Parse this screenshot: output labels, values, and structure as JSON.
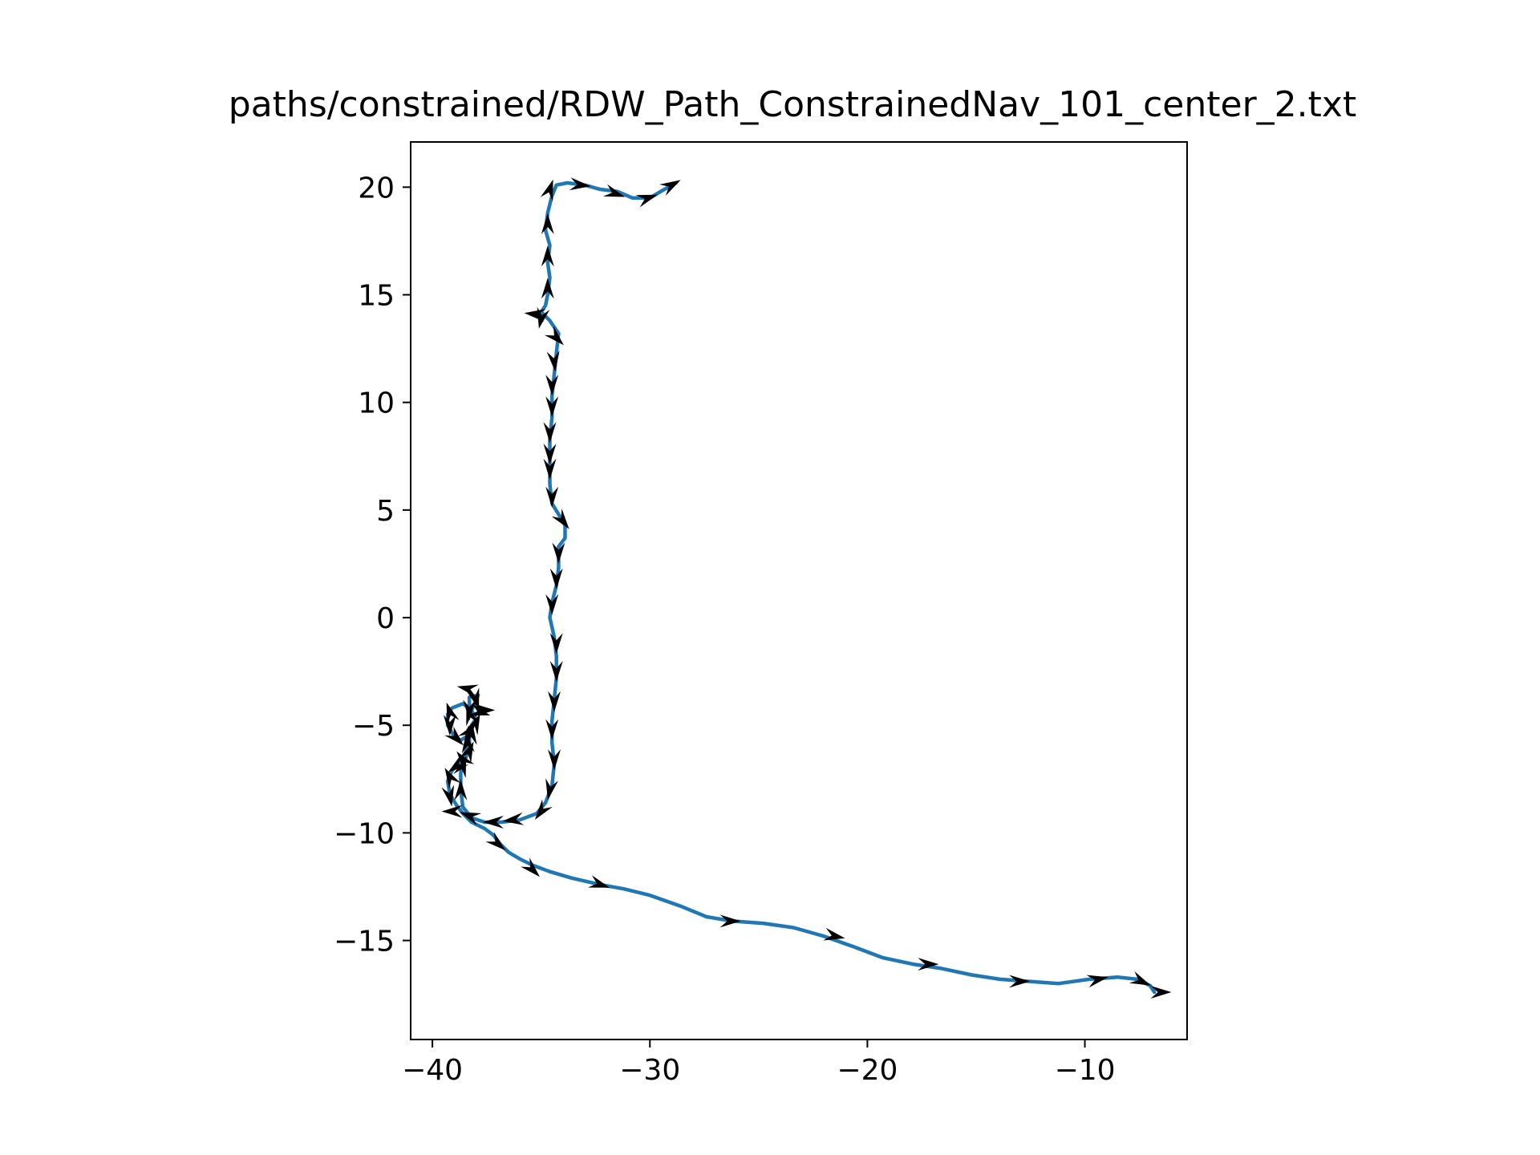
{
  "chart_data": {
    "type": "line",
    "title": "paths/constrained/RDW_Path_ConstrainedNav_101_center_2.txt",
    "xlabel": "",
    "ylabel": "",
    "xlim": [
      -41,
      -5.3
    ],
    "ylim": [
      -19.6,
      22.1
    ],
    "xticks": [
      -40,
      -30,
      -20,
      -10
    ],
    "xtick_labels": [
      "−40",
      "−30",
      "−20",
      "−10"
    ],
    "yticks": [
      -15,
      -10,
      -5,
      0,
      5,
      10,
      15,
      20
    ],
    "ytick_labels": [
      "−15",
      "−10",
      "−5",
      "0",
      "5",
      "10",
      "15",
      "20"
    ],
    "grid": false,
    "line_color": "#1f77b4",
    "arrow_color": "#000000",
    "series": [
      {
        "values": [
          [
            -28.8,
            20.2
          ],
          [
            -29.5,
            19.8
          ],
          [
            -30.0,
            19.5
          ],
          [
            -30.8,
            19.5
          ],
          [
            -31.5,
            19.8
          ],
          [
            -32.3,
            19.9
          ],
          [
            -33.0,
            20.1
          ],
          [
            -33.8,
            20.2
          ],
          [
            -34.3,
            20.1
          ],
          [
            -34.5,
            19.6
          ],
          [
            -34.7,
            18.8
          ],
          [
            -34.8,
            18.0
          ],
          [
            -34.6,
            17.3
          ],
          [
            -34.7,
            16.5
          ],
          [
            -34.6,
            15.8
          ],
          [
            -34.7,
            15.0
          ],
          [
            -34.8,
            14.5
          ],
          [
            -35.0,
            14.2
          ],
          [
            -34.6,
            13.8
          ],
          [
            -34.2,
            13.2
          ],
          [
            -34.3,
            12.3
          ],
          [
            -34.4,
            11.3
          ],
          [
            -34.5,
            10.3
          ],
          [
            -34.5,
            9.3
          ],
          [
            -34.6,
            8.3
          ],
          [
            -34.6,
            7.3
          ],
          [
            -34.6,
            6.2
          ],
          [
            -34.5,
            5.3
          ],
          [
            -34.2,
            4.8
          ],
          [
            -33.9,
            4.3
          ],
          [
            -33.9,
            3.7
          ],
          [
            -34.2,
            3.3
          ],
          [
            -34.2,
            2.3
          ],
          [
            -34.3,
            1.5
          ],
          [
            -34.5,
            0.7
          ],
          [
            -34.6,
            0.0
          ],
          [
            -34.4,
            -0.9
          ],
          [
            -34.3,
            -1.8
          ],
          [
            -34.3,
            -2.8
          ],
          [
            -34.4,
            -3.8
          ],
          [
            -34.5,
            -4.8
          ],
          [
            -34.5,
            -5.8
          ],
          [
            -34.4,
            -6.8
          ],
          [
            -34.5,
            -7.8
          ],
          [
            -34.8,
            -8.6
          ],
          [
            -35.2,
            -9.1
          ],
          [
            -36.0,
            -9.4
          ],
          [
            -36.8,
            -9.5
          ],
          [
            -37.6,
            -9.5
          ],
          [
            -38.2,
            -9.3
          ],
          [
            -38.6,
            -8.8
          ],
          [
            -38.7,
            -8.0
          ],
          [
            -38.7,
            -7.2
          ],
          [
            -38.5,
            -6.6
          ],
          [
            -38.3,
            -6.1
          ],
          [
            -38.3,
            -5.5
          ],
          [
            -38.2,
            -5.0
          ],
          [
            -38.0,
            -4.7
          ],
          [
            -38.2,
            -4.3
          ],
          [
            -38.0,
            -3.9
          ],
          [
            -37.9,
            -3.6
          ],
          [
            -38.3,
            -3.7
          ],
          [
            -38.3,
            -4.2
          ],
          [
            -38.6,
            -4.0
          ],
          [
            -39.1,
            -4.2
          ],
          [
            -39.3,
            -4.5
          ],
          [
            -39.3,
            -5.0
          ],
          [
            -39.0,
            -5.5
          ],
          [
            -38.7,
            -5.7
          ],
          [
            -38.4,
            -5.5
          ],
          [
            -38.3,
            -5.1
          ],
          [
            -38.3,
            -5.8
          ],
          [
            -38.5,
            -6.3
          ],
          [
            -38.8,
            -6.8
          ],
          [
            -39.1,
            -7.1
          ],
          [
            -39.3,
            -7.6
          ],
          [
            -39.2,
            -8.2
          ],
          [
            -38.9,
            -8.7
          ],
          [
            -38.6,
            -9.1
          ],
          [
            -38.2,
            -9.5
          ],
          [
            -37.6,
            -9.8
          ],
          [
            -37.2,
            -10.1
          ],
          [
            -36.9,
            -10.5
          ],
          [
            -36.5,
            -10.9
          ],
          [
            -36.0,
            -11.2
          ],
          [
            -35.4,
            -11.5
          ],
          [
            -34.6,
            -11.8
          ],
          [
            -33.6,
            -12.1
          ],
          [
            -32.3,
            -12.4
          ],
          [
            -31.2,
            -12.6
          ],
          [
            -30.0,
            -12.9
          ],
          [
            -28.6,
            -13.4
          ],
          [
            -27.4,
            -13.9
          ],
          [
            -26.2,
            -14.1
          ],
          [
            -24.8,
            -14.2
          ],
          [
            -23.4,
            -14.4
          ],
          [
            -22.0,
            -14.8
          ],
          [
            -20.6,
            -15.3
          ],
          [
            -19.3,
            -15.8
          ],
          [
            -17.9,
            -16.1
          ],
          [
            -16.6,
            -16.3
          ],
          [
            -15.2,
            -16.6
          ],
          [
            -13.9,
            -16.8
          ],
          [
            -12.6,
            -16.9
          ],
          [
            -11.2,
            -17.0
          ],
          [
            -9.8,
            -16.8
          ],
          [
            -8.5,
            -16.7
          ],
          [
            -7.6,
            -16.8
          ],
          [
            -7.0,
            -17.1
          ],
          [
            -6.8,
            -17.4
          ]
        ]
      }
    ],
    "arrows": [
      [
        -29.0,
        20.1,
        0.9,
        0.5
      ],
      [
        -30.1,
        19.5,
        0.9,
        0.3
      ],
      [
        -31.6,
        19.7,
        0.9,
        -0.3
      ],
      [
        -33.2,
        20.1,
        0.9,
        -0.1
      ],
      [
        -34.6,
        19.9,
        0.3,
        0.9
      ],
      [
        -34.7,
        18.3,
        0.0,
        1.0
      ],
      [
        -34.7,
        16.8,
        0.0,
        1.0
      ],
      [
        -34.7,
        15.3,
        0.0,
        1.0
      ],
      [
        -35.3,
        14.1,
        -0.9,
        0.1
      ],
      [
        -35.0,
        13.9,
        -0.2,
        -0.9
      ],
      [
        -34.3,
        13.0,
        0.7,
        -0.7
      ],
      [
        -34.4,
        11.9,
        0.1,
        -1.0
      ],
      [
        -34.5,
        10.8,
        0.0,
        -1.0
      ],
      [
        -34.5,
        9.8,
        0.0,
        -1.0
      ],
      [
        -34.6,
        8.6,
        0.0,
        -1.0
      ],
      [
        -34.6,
        7.6,
        0.0,
        -1.0
      ],
      [
        -34.6,
        6.9,
        0.0,
        -1.0
      ],
      [
        -34.5,
        5.6,
        0.0,
        -1.0
      ],
      [
        -34.0,
        4.5,
        0.6,
        -0.8
      ],
      [
        -34.2,
        3.0,
        0.0,
        -1.0
      ],
      [
        -34.3,
        1.8,
        0.0,
        -1.0
      ],
      [
        -34.5,
        0.6,
        0.0,
        -1.0
      ],
      [
        -34.3,
        -1.2,
        0.0,
        -1.0
      ],
      [
        -34.3,
        -2.5,
        0.0,
        -1.0
      ],
      [
        -34.4,
        -3.9,
        0.0,
        -1.0
      ],
      [
        -34.5,
        -5.2,
        0.0,
        -1.0
      ],
      [
        -34.4,
        -6.6,
        0.0,
        -1.0
      ],
      [
        -34.6,
        -8.0,
        -0.2,
        -1.0
      ],
      [
        -35.0,
        -9.0,
        -0.6,
        -0.8
      ],
      [
        -36.3,
        -9.4,
        -0.9,
        -0.1
      ],
      [
        -37.2,
        -9.5,
        -0.9,
        0.0
      ],
      [
        -38.3,
        -9.2,
        -0.8,
        0.3
      ],
      [
        -39.1,
        -9.0,
        -1.0,
        0.0
      ],
      [
        -38.7,
        -8.0,
        0.0,
        1.0
      ],
      [
        -38.6,
        -6.9,
        0.3,
        0.9
      ],
      [
        -38.3,
        -6.2,
        0.4,
        0.9
      ],
      [
        -38.2,
        -5.4,
        0.1,
        1.0
      ],
      [
        -38.0,
        -4.9,
        0.4,
        0.9
      ],
      [
        -38.3,
        -4.5,
        -0.3,
        1.0
      ],
      [
        -37.8,
        -4.4,
        1.0,
        -0.3
      ],
      [
        -38.4,
        -3.3,
        -0.9,
        0.2
      ],
      [
        -38.0,
        -3.8,
        0.3,
        -1.0
      ],
      [
        -37.6,
        -4.3,
        1.0,
        0.0
      ],
      [
        -38.3,
        -4.3,
        0.0,
        -1.0
      ],
      [
        -39.2,
        -4.4,
        -0.3,
        0.9
      ],
      [
        -39.2,
        -5.0,
        0.0,
        -1.0
      ],
      [
        -38.9,
        -5.6,
        0.7,
        -0.7
      ],
      [
        -38.3,
        -5.3,
        0.6,
        0.8
      ],
      [
        -38.4,
        -5.8,
        -0.1,
        1.0
      ],
      [
        -38.6,
        -6.6,
        -0.6,
        0.8
      ],
      [
        -38.9,
        -6.9,
        -0.8,
        -0.6
      ],
      [
        -39.2,
        -7.4,
        -0.5,
        0.9
      ],
      [
        -39.2,
        -8.3,
        0.2,
        -1.0
      ],
      [
        -37.0,
        -10.5,
        0.7,
        -0.6
      ],
      [
        -35.4,
        -11.7,
        0.7,
        -0.7
      ],
      [
        -32.3,
        -12.4,
        0.95,
        -0.3
      ],
      [
        -26.3,
        -14.1,
        1.0,
        0.0
      ],
      [
        -21.5,
        -14.8,
        1.0,
        -0.2
      ],
      [
        -17.2,
        -16.1,
        1.0,
        0.0
      ],
      [
        -13.0,
        -16.9,
        1.0,
        0.0
      ],
      [
        -9.4,
        -16.8,
        1.0,
        0.2
      ],
      [
        -7.4,
        -16.9,
        0.9,
        -0.4
      ],
      [
        -6.5,
        -17.4,
        1.0,
        0.0
      ]
    ]
  }
}
